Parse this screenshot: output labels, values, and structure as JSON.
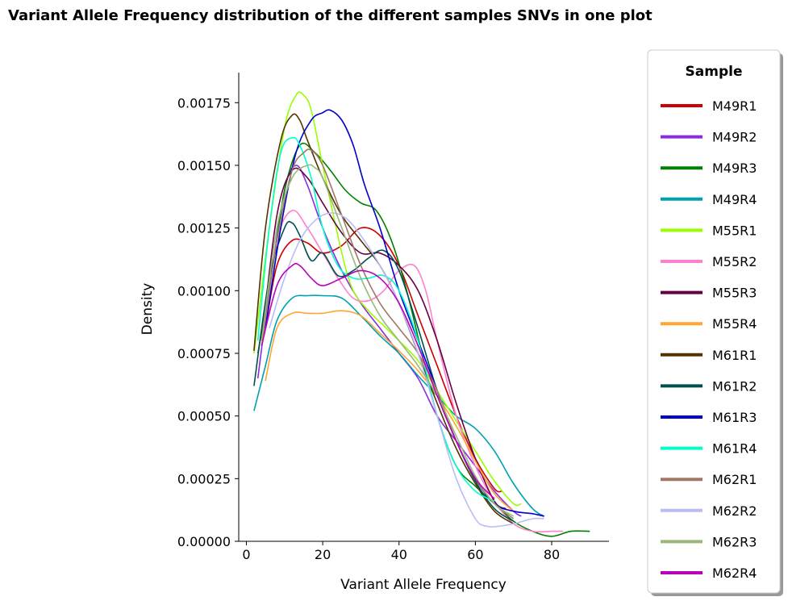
{
  "chart_data": {
    "type": "line",
    "title": "Variant Allele Frequency distribution of the different samples SNVs in one plot",
    "xlabel": "Variant Allele Frequency",
    "ylabel": "Density",
    "xlim": [
      -2,
      95
    ],
    "ylim": [
      0,
      0.00187
    ],
    "xticks": [
      0,
      20,
      40,
      60,
      80
    ],
    "yticks": [
      0.0,
      0.00025,
      0.0005,
      0.00075,
      0.001,
      0.00125,
      0.0015,
      0.00175
    ],
    "ytick_labels": [
      "0.00000",
      "0.00025",
      "0.00050",
      "0.00075",
      "0.00100",
      "0.00125",
      "0.00150",
      "0.00175"
    ],
    "grid": false,
    "legend": {
      "title": "Sample",
      "position": "right-outside"
    },
    "series": [
      {
        "name": "M49R1",
        "color": "#cc0000",
        "x": [
          5,
          8,
          12,
          16,
          20,
          25,
          30,
          35,
          40,
          45,
          50,
          55,
          60,
          65,
          67
        ],
        "y": [
          0.00085,
          0.0011,
          0.0012,
          0.00119,
          0.00115,
          0.00118,
          0.00125,
          0.00122,
          0.0011,
          0.0009,
          0.0007,
          0.0005,
          0.00033,
          0.00021,
          0.0002
        ]
      },
      {
        "name": "M49R2",
        "color": "#8a2be2",
        "x": [
          3,
          6,
          10,
          13,
          16,
          20,
          25,
          30,
          35,
          40,
          45,
          50,
          55,
          60,
          65,
          70,
          72
        ],
        "y": [
          0.00065,
          0.001,
          0.0014,
          0.0015,
          0.00142,
          0.00125,
          0.00108,
          0.00095,
          0.00085,
          0.00075,
          0.00065,
          0.0005,
          0.0004,
          0.0003,
          0.0002,
          0.00012,
          0.0001
        ]
      },
      {
        "name": "M49R3",
        "color": "#008000",
        "x": [
          3,
          7,
          10,
          14,
          18,
          22,
          26,
          30,
          34,
          38,
          42,
          46,
          50,
          55,
          60,
          65,
          70,
          75,
          80,
          85,
          90
        ],
        "y": [
          0.00075,
          0.0011,
          0.0014,
          0.00158,
          0.00155,
          0.00148,
          0.0014,
          0.00135,
          0.00132,
          0.0012,
          0.001,
          0.00075,
          0.0005,
          0.0003,
          0.00022,
          0.00015,
          8e-05,
          4e-05,
          2e-05,
          4e-05,
          4e-05
        ]
      },
      {
        "name": "M49R4",
        "color": "#00a0b0",
        "x": [
          2,
          5,
          8,
          12,
          16,
          20,
          25,
          30,
          35,
          40,
          45,
          50,
          55,
          60,
          65,
          70,
          75,
          78
        ],
        "y": [
          0.00052,
          0.0007,
          0.00088,
          0.00097,
          0.00098,
          0.00098,
          0.00097,
          0.0009,
          0.00082,
          0.00075,
          0.00066,
          0.00058,
          0.0005,
          0.00045,
          0.00036,
          0.00023,
          0.00013,
          0.0001
        ]
      },
      {
        "name": "M55R1",
        "color": "#99ff00",
        "x": [
          2,
          6,
          10,
          13,
          15,
          17,
          20,
          25,
          28,
          32,
          36,
          40,
          45,
          50,
          55,
          60,
          65,
          70,
          72
        ],
        "y": [
          0.00075,
          0.00125,
          0.00165,
          0.00178,
          0.00178,
          0.00172,
          0.0015,
          0.00115,
          0.001,
          0.00092,
          0.00086,
          0.0008,
          0.00072,
          0.0006,
          0.00048,
          0.00036,
          0.00024,
          0.00015,
          0.00015
        ]
      },
      {
        "name": "M55R2",
        "color": "#ff80cc",
        "x": [
          5,
          8,
          12,
          16,
          20,
          24,
          28,
          32,
          36,
          40,
          44,
          47,
          50,
          55,
          60,
          65,
          70,
          75,
          80,
          83
        ],
        "y": [
          0.00085,
          0.0012,
          0.00132,
          0.00125,
          0.00115,
          0.00105,
          0.00097,
          0.00096,
          0.001,
          0.00108,
          0.0011,
          0.001,
          0.0008,
          0.0005,
          0.0003,
          0.00016,
          7e-05,
          4e-05,
          4e-05,
          4e-05
        ]
      },
      {
        "name": "M55R3",
        "color": "#660044",
        "x": [
          4,
          8,
          12,
          16,
          20,
          25,
          30,
          35,
          40,
          45,
          50,
          55,
          60,
          65,
          68
        ],
        "y": [
          0.0008,
          0.0013,
          0.00148,
          0.00145,
          0.00135,
          0.00123,
          0.00115,
          0.00115,
          0.0011,
          0.001,
          0.0008,
          0.00055,
          0.00033,
          0.00016,
          0.00013
        ]
      },
      {
        "name": "M55R4",
        "color": "#ffa530",
        "x": [
          5,
          8,
          12,
          16,
          20,
          25,
          30,
          35,
          40,
          45,
          50,
          55,
          60,
          65,
          70
        ],
        "y": [
          0.00064,
          0.00085,
          0.00091,
          0.00091,
          0.00091,
          0.00092,
          0.0009,
          0.00083,
          0.00076,
          0.00068,
          0.00058,
          0.00046,
          0.00032,
          0.00019,
          0.00012
        ]
      },
      {
        "name": "M61R1",
        "color": "#553300",
        "x": [
          2,
          5,
          9,
          12,
          14,
          16,
          20,
          25,
          30,
          35,
          40,
          45,
          50,
          55,
          60,
          65,
          70
        ],
        "y": [
          0.00076,
          0.00125,
          0.0016,
          0.0017,
          0.00168,
          0.0016,
          0.00145,
          0.0013,
          0.0012,
          0.0011,
          0.00095,
          0.00075,
          0.00055,
          0.00037,
          0.00023,
          0.00012,
          7e-05
        ]
      },
      {
        "name": "M61R2",
        "color": "#005050",
        "x": [
          2,
          6,
          10,
          12,
          14,
          17,
          20,
          24,
          28,
          32,
          36,
          40,
          45,
          50,
          55,
          60,
          65,
          70
        ],
        "y": [
          0.00062,
          0.00105,
          0.00125,
          0.00127,
          0.00122,
          0.00112,
          0.00115,
          0.00106,
          0.00108,
          0.00113,
          0.00116,
          0.00108,
          0.00085,
          0.0006,
          0.0004,
          0.00024,
          0.00013,
          8e-05
        ]
      },
      {
        "name": "M61R3",
        "color": "#0000cc",
        "x": [
          5,
          9,
          13,
          17,
          20,
          22,
          25,
          28,
          31,
          35,
          40,
          45,
          50,
          55,
          60,
          65,
          70,
          75,
          78
        ],
        "y": [
          0.00085,
          0.00125,
          0.00155,
          0.00168,
          0.00171,
          0.00172,
          0.00168,
          0.00158,
          0.00142,
          0.00125,
          0.001,
          0.0008,
          0.0006,
          0.0004,
          0.00025,
          0.00015,
          0.00012,
          0.00011,
          0.0001
        ]
      },
      {
        "name": "M61R4",
        "color": "#00ffcc",
        "x": [
          3,
          6,
          9,
          12,
          14,
          17,
          20,
          24,
          28,
          32,
          36,
          40,
          45,
          50,
          55,
          60,
          65
        ],
        "y": [
          0.0008,
          0.00125,
          0.00155,
          0.00161,
          0.00158,
          0.00145,
          0.00125,
          0.0011,
          0.00105,
          0.00105,
          0.00106,
          0.001,
          0.0008,
          0.0005,
          0.0003,
          0.0002,
          0.00016
        ]
      },
      {
        "name": "M62R1",
        "color": "#a07868",
        "x": [
          4,
          8,
          12,
          15,
          17,
          20,
          25,
          30,
          35,
          40,
          45,
          50,
          55,
          60,
          65,
          70
        ],
        "y": [
          0.00078,
          0.0012,
          0.00148,
          0.00155,
          0.00156,
          0.0015,
          0.0013,
          0.0011,
          0.00095,
          0.00085,
          0.00075,
          0.0006,
          0.0004,
          0.00025,
          0.00015,
          9e-05
        ]
      },
      {
        "name": "M62R2",
        "color": "#bbbbf8",
        "x": [
          6,
          10,
          14,
          18,
          22,
          26,
          30,
          35,
          40,
          45,
          50,
          55,
          60,
          63,
          66,
          70,
          75,
          78
        ],
        "y": [
          0.00085,
          0.00105,
          0.0012,
          0.00128,
          0.00131,
          0.00129,
          0.00122,
          0.0011,
          0.00095,
          0.00075,
          0.0005,
          0.00025,
          9e-05,
          6e-05,
          6e-05,
          7e-05,
          9e-05,
          9e-05
        ]
      },
      {
        "name": "M62R3",
        "color": "#99b87a",
        "x": [
          4,
          8,
          12,
          16,
          18,
          20,
          25,
          30,
          35,
          40,
          45,
          50,
          55,
          60,
          65,
          70
        ],
        "y": [
          0.0008,
          0.00125,
          0.00145,
          0.0015,
          0.00149,
          0.00145,
          0.00125,
          0.00105,
          0.0009,
          0.0008,
          0.0007,
          0.00058,
          0.00042,
          0.00026,
          0.00015,
          0.0001
        ]
      },
      {
        "name": "M62R4",
        "color": "#bb00bb",
        "x": [
          4,
          8,
          12,
          14,
          17,
          20,
          25,
          30,
          35,
          40,
          45,
          50,
          55,
          60,
          65
        ],
        "y": [
          0.00078,
          0.00102,
          0.0011,
          0.0011,
          0.00105,
          0.00102,
          0.00105,
          0.00108,
          0.00105,
          0.00095,
          0.00078,
          0.00058,
          0.0004,
          0.00025,
          0.00017
        ]
      }
    ]
  }
}
